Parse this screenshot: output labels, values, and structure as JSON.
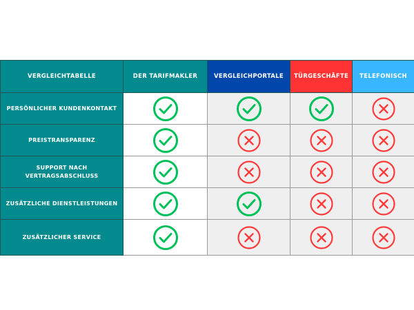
{
  "colors": {
    "teal": "#028a8f",
    "blue": "#0047ab",
    "red": "#ff3333",
    "lightblue": "#38b6ff",
    "check": "#00c05a",
    "cross": "#ff3b3b"
  },
  "headers": [
    {
      "label": "VERGLEICHTABELLE",
      "color": "#028a8f"
    },
    {
      "label": "DER TARIFMAKLER",
      "color": "#028a8f"
    },
    {
      "label": "VERGLEICHPORTALE",
      "color": "#0047ab"
    },
    {
      "label": "TÜRGESCHÄFTE",
      "color": "#ff3333"
    },
    {
      "label": "TELEFONISCH",
      "color": "#38b6ff"
    }
  ],
  "rows": [
    {
      "label": "PERSÖNLICHER KUNDENKONTAKT",
      "values": [
        "check",
        "check",
        "check",
        "cross"
      ]
    },
    {
      "label": "PREISTRANSPARENZ",
      "values": [
        "check",
        "cross",
        "cross",
        "cross"
      ]
    },
    {
      "label": "SUPPORT NACH VERTRAGSABSCHLUSS",
      "values": [
        "check",
        "cross",
        "cross",
        "cross"
      ]
    },
    {
      "label": "ZUSÄTZLICHE DIENSTLEISTUNGEN",
      "values": [
        "check",
        "check",
        "cross",
        "cross"
      ]
    },
    {
      "label": "ZUSÄTZLICHER SERVICE",
      "values": [
        "check",
        "cross",
        "cross",
        "cross"
      ]
    }
  ]
}
